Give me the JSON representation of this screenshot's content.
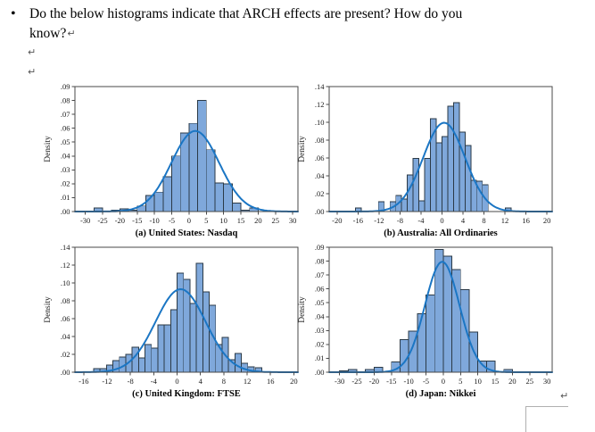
{
  "question": {
    "bullet": "•",
    "line1": "Do the below histograms indicate that ARCH effects are present? How do you",
    "line2": "know?"
  },
  "marks": {
    "return_mark": "↵"
  },
  "colors": {
    "bar_fill": "#7FA8DB",
    "bar_stroke": "#2B3A47",
    "curve": "#1B76C4",
    "frame": "#4a4a4a",
    "tick_text": "#1a1a1a",
    "caption_text": "#000000"
  },
  "chart_data": [
    {
      "id": "a",
      "type": "bar",
      "title": "(a) United States: Nasdaq",
      "ylabel": "Density",
      "xlim": [
        -33,
        31.5
      ],
      "ylim": [
        0,
        0.09
      ],
      "xticks": [
        -30,
        -25,
        -20,
        -15,
        -10,
        -5,
        0,
        5,
        10,
        15,
        20,
        25,
        30
      ],
      "xtick_labels": [
        "-30",
        "-25",
        "-20",
        "-15",
        "-10",
        "-5",
        "0",
        "5",
        "10",
        "15",
        "20",
        "25",
        "30"
      ],
      "yticks": [
        0,
        0.01,
        0.02,
        0.03,
        0.04,
        0.05,
        0.06,
        0.07,
        0.08,
        0.09
      ],
      "ytick_labels": [
        ".00",
        ".01",
        ".02",
        ".03",
        ".04",
        ".05",
        ".06",
        ".07",
        ".08",
        ".09"
      ],
      "bin_width": 2.5,
      "bars": [
        {
          "x": -27.5,
          "h": 0.0025
        },
        {
          "x": -22.5,
          "h": 0.001
        },
        {
          "x": -20,
          "h": 0.002
        },
        {
          "x": -17.5,
          "h": 0.001
        },
        {
          "x": -15,
          "h": 0.004
        },
        {
          "x": -12.5,
          "h": 0.0115
        },
        {
          "x": -10,
          "h": 0.014
        },
        {
          "x": -7.5,
          "h": 0.025
        },
        {
          "x": -5,
          "h": 0.04
        },
        {
          "x": -2.5,
          "h": 0.0565
        },
        {
          "x": 0,
          "h": 0.0635
        },
        {
          "x": 2.5,
          "h": 0.08
        },
        {
          "x": 5,
          "h": 0.0445
        },
        {
          "x": 7.5,
          "h": 0.0205
        },
        {
          "x": 10,
          "h": 0.02
        },
        {
          "x": 12.5,
          "h": 0.006
        },
        {
          "x": 15,
          "h": 0.001
        },
        {
          "x": 17.5,
          "h": 0.0025
        }
      ],
      "curve": {
        "mean": 1.8,
        "sd": 6.9,
        "peak": 0.058
      }
    },
    {
      "id": "b",
      "type": "bar",
      "title": "(b) Australia: All Ordinaries",
      "ylabel": "Density",
      "xlim": [
        -21.5,
        21
      ],
      "ylim": [
        0,
        0.14
      ],
      "xticks": [
        -20,
        -16,
        -12,
        -8,
        -4,
        0,
        4,
        8,
        12,
        16,
        20
      ],
      "xtick_labels": [
        "-20",
        "-16",
        "-12",
        "-8",
        "-4",
        "0",
        "4",
        "8",
        "12",
        "16",
        "20"
      ],
      "yticks": [
        0,
        0.02,
        0.04,
        0.06,
        0.08,
        0.1,
        0.12,
        0.14
      ],
      "ytick_labels": [
        ".00",
        ".02",
        ".04",
        ".06",
        ".08",
        ".10",
        ".12",
        ".14"
      ],
      "bin_width": 1.1,
      "bars": [
        {
          "x": -16.5,
          "h": 0.004
        },
        {
          "x": -12.1,
          "h": 0.011
        },
        {
          "x": -9.9,
          "h": 0.011
        },
        {
          "x": -8.8,
          "h": 0.018
        },
        {
          "x": -7.7,
          "h": 0.014
        },
        {
          "x": -6.6,
          "h": 0.041
        },
        {
          "x": -5.5,
          "h": 0.0595
        },
        {
          "x": -4.4,
          "h": 0.012
        },
        {
          "x": -3.3,
          "h": 0.0595
        },
        {
          "x": -2.2,
          "h": 0.104
        },
        {
          "x": -1.1,
          "h": 0.077
        },
        {
          "x": 0,
          "h": 0.084
        },
        {
          "x": 1.1,
          "h": 0.118
        },
        {
          "x": 2.2,
          "h": 0.122
        },
        {
          "x": 3.3,
          "h": 0.089
        },
        {
          "x": 4.4,
          "h": 0.074
        },
        {
          "x": 5.5,
          "h": 0.035
        },
        {
          "x": 6.6,
          "h": 0.034
        },
        {
          "x": 7.7,
          "h": 0.03
        },
        {
          "x": 12.1,
          "h": 0.004
        }
      ],
      "curve": {
        "mean": 0.4,
        "sd": 4.0,
        "peak": 0.0995
      }
    },
    {
      "id": "c",
      "type": "bar",
      "title": "(c) United Kingdom: FTSE",
      "ylabel": "Density",
      "xlim": [
        -17.5,
        20.7
      ],
      "ylim": [
        0,
        0.14
      ],
      "xticks": [
        -16,
        -12,
        -8,
        -4,
        0,
        4,
        8,
        12,
        16,
        20
      ],
      "xtick_labels": [
        "-16",
        "-12",
        "-8",
        "-4",
        "0",
        "4",
        "8",
        "12",
        "16",
        "20"
      ],
      "yticks": [
        0,
        0.02,
        0.04,
        0.06,
        0.08,
        0.1,
        0.12,
        0.14
      ],
      "ytick_labels": [
        ".00",
        ".02",
        ".04",
        ".06",
        ".08",
        ".10",
        ".12",
        ".14"
      ],
      "bin_width": 1.1,
      "bars": [
        {
          "x": -14.3,
          "h": 0.004
        },
        {
          "x": -13.2,
          "h": 0.004
        },
        {
          "x": -12.1,
          "h": 0.008
        },
        {
          "x": -11,
          "h": 0.013
        },
        {
          "x": -9.9,
          "h": 0.017
        },
        {
          "x": -8.8,
          "h": 0.02
        },
        {
          "x": -7.7,
          "h": 0.028
        },
        {
          "x": -6.6,
          "h": 0.016
        },
        {
          "x": -5.5,
          "h": 0.031
        },
        {
          "x": -4.4,
          "h": 0.027
        },
        {
          "x": -3.3,
          "h": 0.053
        },
        {
          "x": -2.2,
          "h": 0.053
        },
        {
          "x": -1.1,
          "h": 0.07
        },
        {
          "x": 0,
          "h": 0.111
        },
        {
          "x": 1.1,
          "h": 0.104
        },
        {
          "x": 2.2,
          "h": 0.077
        },
        {
          "x": 3.3,
          "h": 0.122
        },
        {
          "x": 4.4,
          "h": 0.09
        },
        {
          "x": 5.5,
          "h": 0.075
        },
        {
          "x": 6.6,
          "h": 0.031
        },
        {
          "x": 7.7,
          "h": 0.039
        },
        {
          "x": 8.8,
          "h": 0.014
        },
        {
          "x": 9.9,
          "h": 0.021
        },
        {
          "x": 11,
          "h": 0.01
        },
        {
          "x": 12.1,
          "h": 0.006
        },
        {
          "x": 13.4,
          "h": 0.005
        }
      ],
      "curve": {
        "mean": 0.6,
        "sd": 4.3,
        "peak": 0.093
      }
    },
    {
      "id": "d",
      "type": "bar",
      "title": "(d) Japan: Nikkei",
      "ylabel": "Density",
      "xlim": [
        -33,
        31.5
      ],
      "ylim": [
        0,
        0.09
      ],
      "xticks": [
        -30,
        -25,
        -20,
        -15,
        -10,
        -5,
        0,
        5,
        10,
        15,
        20,
        25,
        30
      ],
      "xtick_labels": [
        "-30",
        "-25",
        "-20",
        "-15",
        "-10",
        "-5",
        "0",
        "5",
        "10",
        "15",
        "20",
        "25",
        "30"
      ],
      "yticks": [
        0,
        0.01,
        0.02,
        0.03,
        0.04,
        0.05,
        0.06,
        0.07,
        0.08,
        0.09
      ],
      "ytick_labels": [
        ".00",
        ".01",
        ".02",
        ".03",
        ".04",
        ".05",
        ".06",
        ".07",
        ".08",
        ".09"
      ],
      "bin_width": 2.5,
      "bars": [
        {
          "x": -30,
          "h": 0.001
        },
        {
          "x": -27.5,
          "h": 0.002
        },
        {
          "x": -22.5,
          "h": 0.002
        },
        {
          "x": -20,
          "h": 0.0035
        },
        {
          "x": -15,
          "h": 0.0075
        },
        {
          "x": -12.5,
          "h": 0.0235
        },
        {
          "x": -10,
          "h": 0.0295
        },
        {
          "x": -7.5,
          "h": 0.042
        },
        {
          "x": -5,
          "h": 0.0555
        },
        {
          "x": -2.5,
          "h": 0.0885
        },
        {
          "x": 0,
          "h": 0.0835
        },
        {
          "x": 2.5,
          "h": 0.074
        },
        {
          "x": 5,
          "h": 0.0595
        },
        {
          "x": 7.5,
          "h": 0.029
        },
        {
          "x": 10,
          "h": 0.008
        },
        {
          "x": 12.5,
          "h": 0.008
        },
        {
          "x": 17.5,
          "h": 0.002
        }
      ],
      "curve": {
        "mean": -0.3,
        "sd": 5.0,
        "peak": 0.0795
      }
    }
  ]
}
